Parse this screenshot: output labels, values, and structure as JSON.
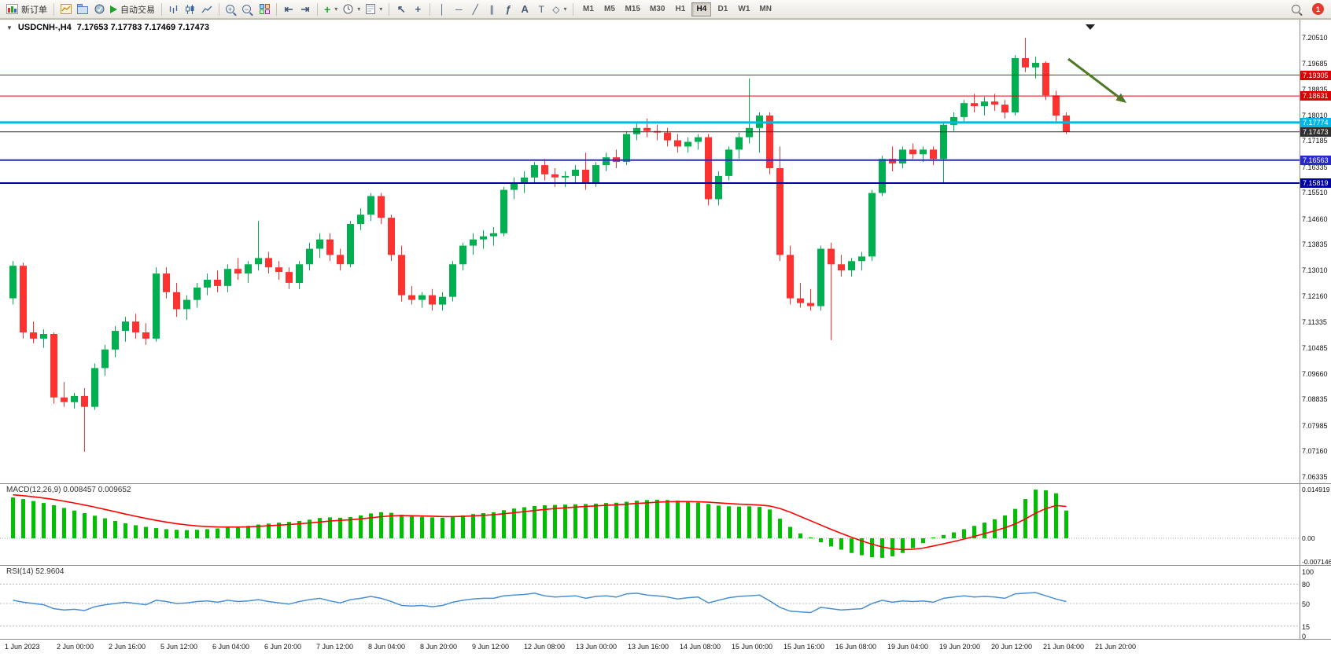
{
  "toolbar": {
    "new_order": "新订单",
    "auto_trading": "自动交易",
    "timeframes": [
      "M1",
      "M5",
      "M15",
      "M30",
      "H1",
      "H4",
      "D1",
      "W1",
      "MN"
    ],
    "active_timeframe": "H4",
    "notification_count": "1",
    "glyphs": {
      "caret": "▾",
      "cursor": "↖",
      "crosshair": "+",
      "vline": "│",
      "hline": "─",
      "trendline": "╱",
      "channel": "∥",
      "fibonacci": "ƒ",
      "text": "A",
      "label": "T",
      "shapes": "◇",
      "zoom_in": "+",
      "zoom_out": "−",
      "indicators": "+",
      "autoscroll": "⇤",
      "chartshift": "⇥"
    }
  },
  "chart": {
    "collapse_glyph": "▼",
    "symbol_title": "USDCNH-,H4",
    "ohlc_quote": "7.17653 7.17783 7.17469 7.17473"
  },
  "chart_data": {
    "type": "candlestick",
    "symbol": "USDCNH-",
    "period": "H4",
    "current_bar": {
      "open": "7.17653",
      "high": "7.17783",
      "low": "7.17469",
      "close": "7.17473"
    },
    "colors": {
      "bull": "#00b050",
      "bear": "#ff3232",
      "macd_bar": "#00c000",
      "macd_signal": "#ff0000",
      "rsi_line": "#4a90d2",
      "arrow": "#4e7a27"
    },
    "price_range": {
      "top": 7.2051,
      "bottom": 7.06335
    },
    "price_axis": [
      "7.20510",
      "7.19685",
      "7.18835",
      "7.18010",
      "7.17185",
      "7.16335",
      "7.15510",
      "7.14660",
      "7.13835",
      "7.13010",
      "7.12160",
      "7.11335",
      "7.10485",
      "7.09660",
      "7.08835",
      "7.07985",
      "7.07160",
      "7.06335"
    ],
    "time_axis": [
      "1 Jun 2023",
      "2 Jun 00:00",
      "2 Jun 16:00",
      "5 Jun 12:00",
      "6 Jun 04:00",
      "6 Jun 20:00",
      "7 Jun 12:00",
      "8 Jun 04:00",
      "8 Jun 20:00",
      "9 Jun 12:00",
      "12 Jun 08:00",
      "13 Jun 00:00",
      "13 Jun 16:00",
      "14 Jun 08:00",
      "15 Jun 00:00",
      "15 Jun 16:00",
      "16 Jun 08:00",
      "19 Jun 04:00",
      "19 Jun 20:00",
      "20 Jun 12:00",
      "21 Jun 04:00",
      "21 Jun 20:00"
    ],
    "hlines": [
      {
        "price": 7.19305,
        "label": "7.19305",
        "color": "#dd0000",
        "width": 1
      },
      {
        "price": 7.18631,
        "label": "7.18631",
        "color": "#dd0000",
        "width": 1
      },
      {
        "price": 7.17774,
        "label": "7.17774",
        "color": "#00b8e8",
        "width": 3
      },
      {
        "price": 7.17473,
        "label": "7.17473",
        "color": "#303030",
        "width": 1
      },
      {
        "price": 7.16563,
        "label": "7.16563",
        "color": "#2828cc",
        "width": 2
      },
      {
        "price": 7.15819,
        "label": "7.15819",
        "color": "#0000a0",
        "width": 2
      }
    ],
    "candles": [
      [
        7.121,
        7.133,
        7.119,
        7.1315
      ],
      [
        7.1315,
        7.1325,
        7.108,
        7.11
      ],
      [
        7.11,
        7.1135,
        7.1065,
        7.108
      ],
      [
        7.108,
        7.111,
        7.105,
        7.1095
      ],
      [
        7.1095,
        7.11,
        7.087,
        7.089
      ],
      [
        7.089,
        7.094,
        7.086,
        7.0875
      ],
      [
        7.0875,
        7.0905,
        7.0855,
        7.0895
      ],
      [
        7.0895,
        7.092,
        7.0715,
        7.086
      ],
      [
        7.086,
        7.1,
        7.085,
        7.0985
      ],
      [
        7.0985,
        7.106,
        7.096,
        7.1045
      ],
      [
        7.1045,
        7.112,
        7.102,
        7.1105
      ],
      [
        7.1105,
        7.115,
        7.107,
        7.1135
      ],
      [
        7.1135,
        7.116,
        7.108,
        7.11
      ],
      [
        7.11,
        7.113,
        7.106,
        7.108
      ],
      [
        7.108,
        7.131,
        7.107,
        7.129
      ],
      [
        7.129,
        7.131,
        7.121,
        7.123
      ],
      [
        7.123,
        7.126,
        7.115,
        7.1175
      ],
      [
        7.1175,
        7.122,
        7.114,
        7.1205
      ],
      [
        7.1205,
        7.126,
        7.118,
        7.1245
      ],
      [
        7.1245,
        7.129,
        7.122,
        7.127
      ],
      [
        7.127,
        7.13,
        7.123,
        7.125
      ],
      [
        7.125,
        7.132,
        7.123,
        7.1305
      ],
      [
        7.1305,
        7.134,
        7.127,
        7.129
      ],
      [
        7.129,
        7.133,
        7.126,
        7.132
      ],
      [
        7.132,
        7.146,
        7.13,
        7.134
      ],
      [
        7.134,
        7.136,
        7.129,
        7.131
      ],
      [
        7.131,
        7.133,
        7.127,
        7.1295
      ],
      [
        7.1295,
        7.131,
        7.124,
        7.126
      ],
      [
        7.126,
        7.133,
        7.124,
        7.132
      ],
      [
        7.132,
        7.139,
        7.13,
        7.137
      ],
      [
        7.137,
        7.142,
        7.134,
        7.14
      ],
      [
        7.14,
        7.142,
        7.133,
        7.135
      ],
      [
        7.135,
        7.137,
        7.13,
        7.132
      ],
      [
        7.132,
        7.146,
        7.131,
        7.145
      ],
      [
        7.145,
        7.15,
        7.143,
        7.148
      ],
      [
        7.148,
        7.155,
        7.146,
        7.154
      ],
      [
        7.154,
        7.155,
        7.145,
        7.147
      ],
      [
        7.147,
        7.148,
        7.133,
        7.135
      ],
      [
        7.135,
        7.138,
        7.12,
        7.122
      ],
      [
        7.122,
        7.125,
        7.119,
        7.1205
      ],
      [
        7.1205,
        7.123,
        7.118,
        7.122
      ],
      [
        7.122,
        7.124,
        7.117,
        7.119
      ],
      [
        7.119,
        7.123,
        7.117,
        7.1215
      ],
      [
        7.1215,
        7.133,
        7.12,
        7.132
      ],
      [
        7.132,
        7.139,
        7.13,
        7.138
      ],
      [
        7.138,
        7.142,
        7.135,
        7.14
      ],
      [
        7.14,
        7.143,
        7.137,
        7.141
      ],
      [
        7.141,
        7.144,
        7.138,
        7.142
      ],
      [
        7.142,
        7.157,
        7.141,
        7.156
      ],
      [
        7.156,
        7.16,
        7.153,
        7.158
      ],
      [
        7.158,
        7.162,
        7.155,
        7.16
      ],
      [
        7.16,
        7.165,
        7.158,
        7.164
      ],
      [
        7.164,
        7.166,
        7.159,
        7.161
      ],
      [
        7.161,
        7.163,
        7.157,
        7.16
      ],
      [
        7.16,
        7.162,
        7.157,
        7.1605
      ],
      [
        7.1605,
        7.164,
        7.158,
        7.1625
      ],
      [
        7.1625,
        7.168,
        7.156,
        7.158
      ],
      [
        7.158,
        7.165,
        7.157,
        7.164
      ],
      [
        7.164,
        7.168,
        7.162,
        7.1665
      ],
      [
        7.1665,
        7.169,
        7.163,
        7.165
      ],
      [
        7.165,
        7.175,
        7.164,
        7.174
      ],
      [
        7.174,
        7.178,
        7.172,
        7.176
      ],
      [
        7.176,
        7.179,
        7.173,
        7.175
      ],
      [
        7.175,
        7.177,
        7.172,
        7.1745
      ],
      [
        7.1745,
        7.176,
        7.17,
        7.172
      ],
      [
        7.172,
        7.174,
        7.168,
        7.17
      ],
      [
        7.17,
        7.173,
        7.168,
        7.1715
      ],
      [
        7.1715,
        7.174,
        7.169,
        7.173
      ],
      [
        7.173,
        7.174,
        7.151,
        7.153
      ],
      [
        7.153,
        7.162,
        7.151,
        7.1605
      ],
      [
        7.1605,
        7.17,
        7.159,
        7.169
      ],
      [
        7.169,
        7.1745,
        7.166,
        7.173
      ],
      [
        7.173,
        7.192,
        7.171,
        7.176
      ],
      [
        7.176,
        7.181,
        7.168,
        7.18
      ],
      [
        7.18,
        7.181,
        7.161,
        7.163
      ],
      [
        7.163,
        7.17,
        7.133,
        7.135
      ],
      [
        7.135,
        7.138,
        7.119,
        7.121
      ],
      [
        7.121,
        7.126,
        7.118,
        7.1195
      ],
      [
        7.1195,
        7.124,
        7.117,
        7.1185
      ],
      [
        7.1185,
        7.138,
        7.117,
        7.137
      ],
      [
        7.137,
        7.139,
        7.1075,
        7.132
      ],
      [
        7.132,
        7.135,
        7.128,
        7.13
      ],
      [
        7.13,
        7.134,
        7.128,
        7.133
      ],
      [
        7.133,
        7.136,
        7.13,
        7.1345
      ],
      [
        7.1345,
        7.156,
        7.133,
        7.155
      ],
      [
        7.155,
        7.167,
        7.154,
        7.166
      ],
      [
        7.166,
        7.17,
        7.162,
        7.1645
      ],
      [
        7.1645,
        7.17,
        7.163,
        7.169
      ],
      [
        7.169,
        7.171,
        7.166,
        7.1675
      ],
      [
        7.1675,
        7.17,
        7.165,
        7.169
      ],
      [
        7.169,
        7.17,
        7.164,
        7.166
      ],
      [
        7.166,
        7.178,
        7.158,
        7.177
      ],
      [
        7.177,
        7.181,
        7.175,
        7.1795
      ],
      [
        7.1795,
        7.185,
        7.178,
        7.184
      ],
      [
        7.184,
        7.187,
        7.181,
        7.183
      ],
      [
        7.183,
        7.186,
        7.18,
        7.1845
      ],
      [
        7.1845,
        7.187,
        7.1815,
        7.1835
      ],
      [
        7.1835,
        7.185,
        7.179,
        7.181
      ],
      [
        7.181,
        7.1995,
        7.18,
        7.1985
      ],
      [
        7.1985,
        7.2051,
        7.194,
        7.1955
      ],
      [
        7.1955,
        7.199,
        7.192,
        7.197
      ],
      [
        7.197,
        7.1975,
        7.185,
        7.1865
      ],
      [
        7.1865,
        7.188,
        7.178,
        7.18
      ],
      [
        7.18,
        7.181,
        7.174,
        7.17473
      ]
    ],
    "macd": {
      "label": "MACD(12,26,9) 0.008457 0.009652",
      "current_value": 0.008457,
      "current_signal": 0.009652,
      "max": 0.014919,
      "min": -0.007146,
      "signal_seed": 0.0135,
      "axis": {
        "labels": [
          "0.014919",
          "0.00",
          "-0.007146"
        ],
        "values": [
          0.014919,
          0,
          -0.007146
        ]
      },
      "values": [
        0.0125,
        0.012,
        0.0114,
        0.0108,
        0.0101,
        0.0093,
        0.0085,
        0.0077,
        0.0069,
        0.0061,
        0.0053,
        0.0046,
        0.004,
        0.0035,
        0.0031,
        0.0028,
        0.0026,
        0.0025,
        0.0026,
        0.0028,
        0.003,
        0.0033,
        0.0035,
        0.0038,
        0.0042,
        0.0045,
        0.0048,
        0.005,
        0.0053,
        0.0057,
        0.0062,
        0.0064,
        0.0063,
        0.0065,
        0.007,
        0.0076,
        0.008,
        0.0078,
        0.0072,
        0.0068,
        0.0066,
        0.0064,
        0.0063,
        0.0066,
        0.007,
        0.0074,
        0.0077,
        0.008,
        0.0086,
        0.0091,
        0.0095,
        0.0099,
        0.0101,
        0.0102,
        0.0103,
        0.0104,
        0.0105,
        0.0106,
        0.0108,
        0.0109,
        0.0112,
        0.0115,
        0.0117,
        0.0118,
        0.0117,
        0.0115,
        0.0112,
        0.011,
        0.0105,
        0.01,
        0.0098,
        0.0097,
        0.0098,
        0.0096,
        0.0088,
        0.006,
        0.0035,
        0.0015,
        0.0,
        -0.0012,
        -0.0025,
        -0.0035,
        -0.0045,
        -0.0052,
        -0.0058,
        -0.006,
        -0.0055,
        -0.0045,
        -0.003,
        -0.0015,
        0.0002,
        0.001,
        0.0018,
        0.0028,
        0.0038,
        0.0048,
        0.0058,
        0.007,
        0.009,
        0.012,
        0.0149,
        0.0147,
        0.0138,
        0.0085
      ]
    },
    "rsi": {
      "label": "RSI(14) 52.9604",
      "current_value": 52.9604,
      "axis_labels": [
        "100",
        "80",
        "50",
        "15",
        "0"
      ],
      "levels": [
        80,
        50,
        15
      ],
      "values": [
        55,
        52,
        50,
        48,
        42,
        40,
        41,
        39,
        45,
        48,
        50,
        52,
        50,
        48,
        55,
        53,
        50,
        51,
        53,
        54,
        52,
        55,
        53,
        54,
        56,
        53,
        51,
        49,
        53,
        56,
        58,
        54,
        51,
        56,
        58,
        61,
        58,
        53,
        47,
        46,
        47,
        45,
        47,
        52,
        55,
        57,
        58,
        58,
        62,
        63,
        64,
        66,
        62,
        60,
        61,
        62,
        58,
        61,
        62,
        60,
        65,
        66,
        63,
        62,
        60,
        57,
        59,
        60,
        51,
        55,
        59,
        61,
        62,
        63,
        54,
        44,
        38,
        37,
        36,
        44,
        42,
        40,
        41,
        42,
        50,
        55,
        52,
        54,
        53,
        54,
        52,
        58,
        60,
        62,
        60,
        61,
        60,
        58,
        65,
        66,
        67,
        62,
        57,
        52.96
      ]
    },
    "arrow": {
      "from": [
        1358,
        50
      ],
      "to": [
        1424,
        100
      ],
      "color": "#4e7a27"
    }
  }
}
